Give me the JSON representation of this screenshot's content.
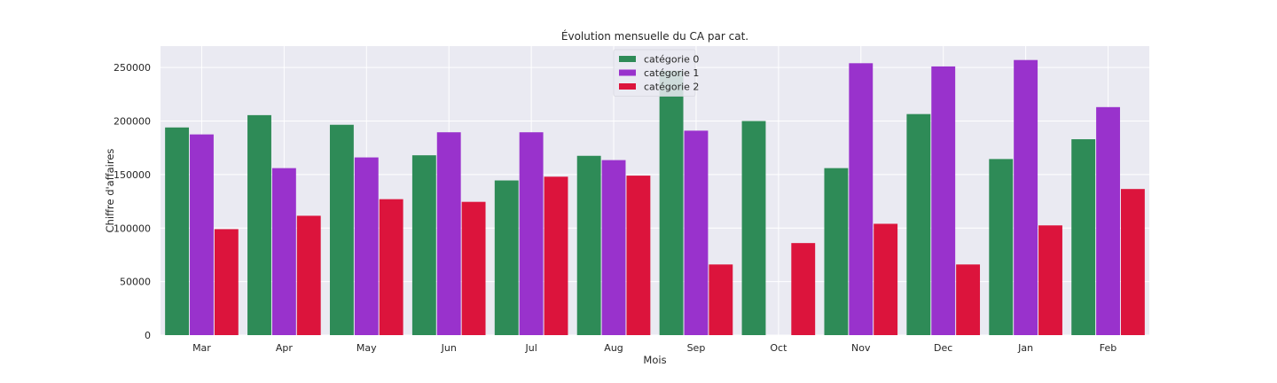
{
  "chart_data": {
    "type": "bar",
    "title": "Évolution mensuelle du CA par cat.",
    "xlabel": "Mois",
    "ylabel": "Chiffre d'affaires",
    "categories": [
      "Mar",
      "Apr",
      "May",
      "Jun",
      "Jul",
      "Aug",
      "Sep",
      "Oct",
      "Nov",
      "Dec",
      "Jan",
      "Feb"
    ],
    "series": [
      {
        "name": "catégorie 0",
        "color": "#2e8b57",
        "values": [
          194000,
          205500,
          196500,
          168000,
          144500,
          167500,
          247000,
          200000,
          156000,
          206500,
          164500,
          183000
        ]
      },
      {
        "name": "catégorie 1",
        "color": "#9932cc",
        "values": [
          187500,
          156000,
          166000,
          189500,
          189500,
          163500,
          191000,
          0,
          254000,
          251000,
          257000,
          213000
        ]
      },
      {
        "name": "catégorie 2",
        "color": "#dc143c",
        "values": [
          99000,
          111500,
          127000,
          124500,
          148000,
          149000,
          66000,
          86000,
          104000,
          66000,
          102500,
          136500
        ]
      }
    ],
    "yticks": [
      0,
      50000,
      100000,
      150000,
      200000,
      250000
    ],
    "ylim": [
      0,
      270000
    ],
    "grid": true,
    "legend_position": "top-center",
    "background": "#eaeaf2",
    "grid_color": "#ffffff"
  }
}
